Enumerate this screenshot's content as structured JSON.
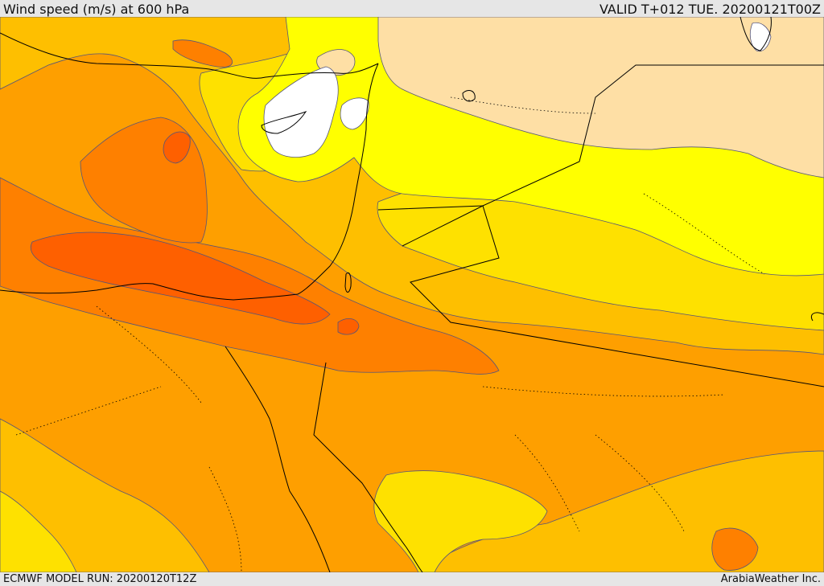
{
  "header": {
    "title": "Wind speed (m/s) at 600 hPa",
    "valid": "VALID T+012 TUE. 20200121T00Z"
  },
  "footer": {
    "model_run": "ECMWF MODEL RUN: 20200120T12Z",
    "credit": "ArabiaWeather Inc."
  },
  "colors": {
    "speed_band_1": "#ffffff",
    "speed_band_2": "#fedfa5",
    "speed_band_3": "#ffff00",
    "speed_band_4": "#fee100",
    "speed_band_5": "#febf00",
    "speed_band_6": "#fe9f00",
    "speed_band_7": "#fe8000",
    "speed_band_8": "#fe6000",
    "coastline": "#000000",
    "contour": "#55557a"
  }
}
